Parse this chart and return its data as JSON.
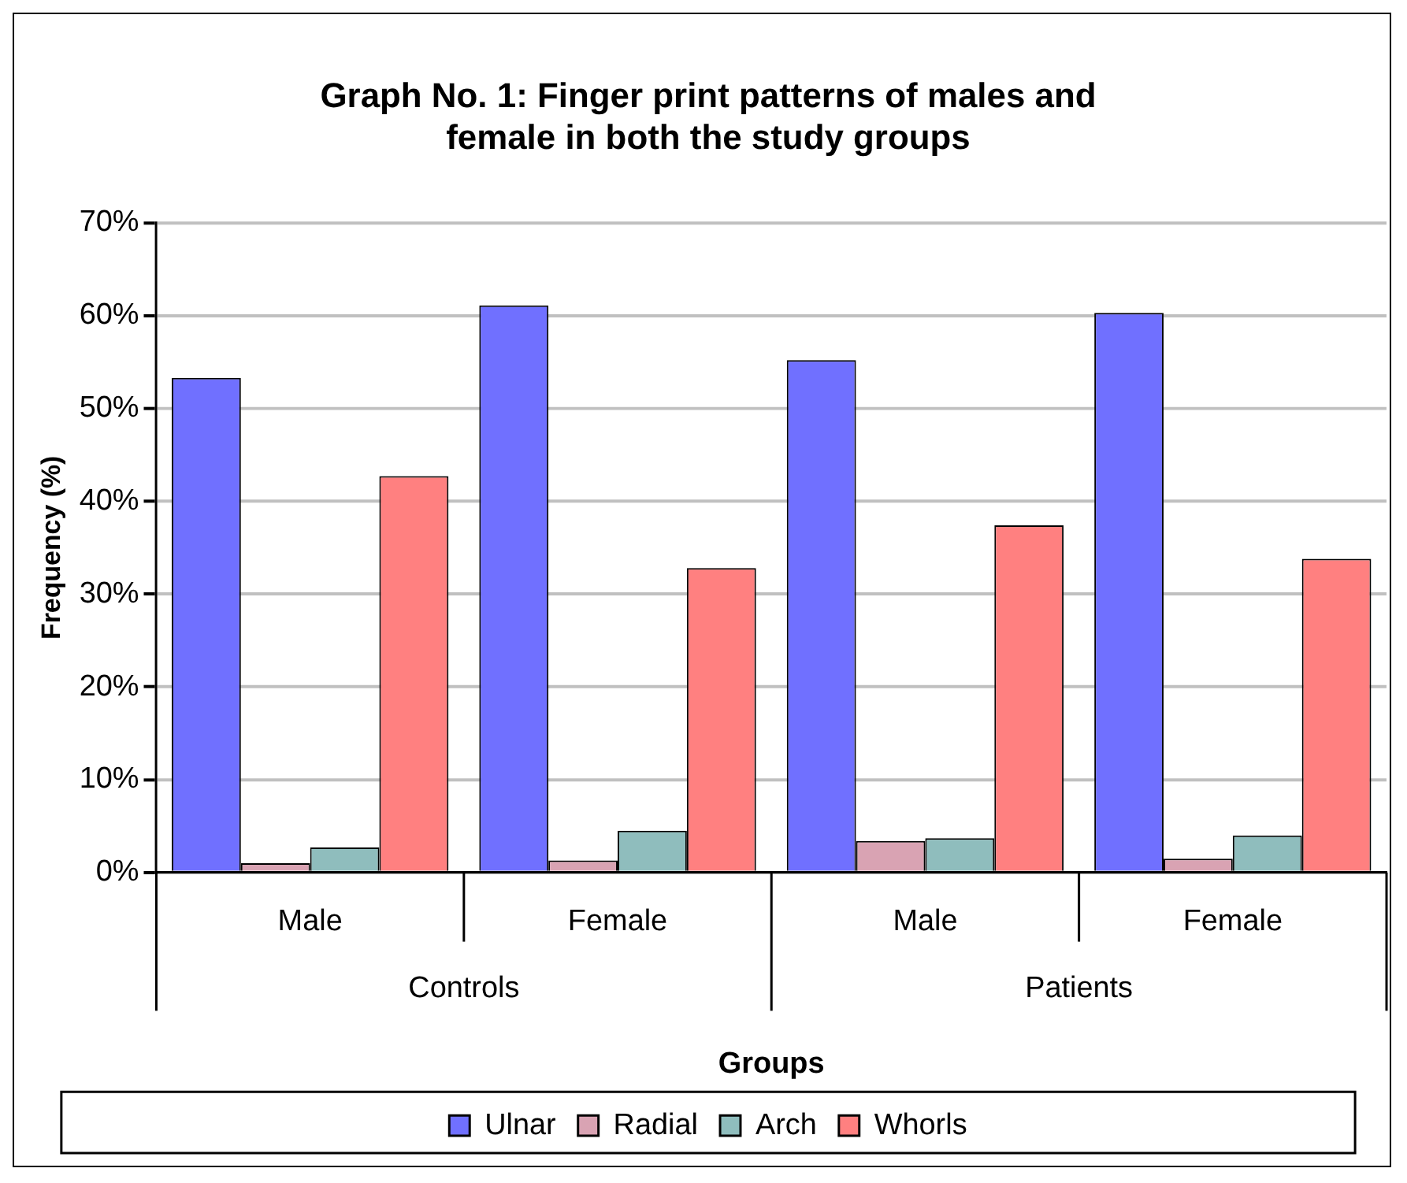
{
  "chart_data": {
    "type": "bar",
    "title": "Graph No. 1: Finger print patterns of males and female in both the study groups",
    "xlabel": "Groups",
    "ylabel": "Frequency (%)",
    "categories": [
      "Male",
      "Female",
      "Male",
      "Female"
    ],
    "annotations": [
      "Controls",
      "Patients"
    ],
    "series": [
      {
        "name": "Ulnar",
        "color": "#7070ff",
        "values": [
          53.3,
          61.1,
          55.2,
          60.3
        ]
      },
      {
        "name": "Radial",
        "color": "#d9a3b3",
        "values": [
          1.0,
          1.3,
          3.4,
          1.5
        ]
      },
      {
        "name": "Arch",
        "color": "#8fbdbd",
        "values": [
          2.7,
          4.5,
          3.7,
          4.0
        ]
      },
      {
        "name": "Whorls",
        "color": "#ff8080",
        "values": [
          42.7,
          32.8,
          37.4,
          33.8
        ]
      }
    ],
    "ylim": [
      0,
      70
    ],
    "yticks": [
      {
        "value": 0,
        "label": "0%"
      },
      {
        "value": 10,
        "label": "10%"
      },
      {
        "value": 20,
        "label": "20%"
      },
      {
        "value": 30,
        "label": "30%"
      },
      {
        "value": 40,
        "label": "40%"
      },
      {
        "value": 50,
        "label": "50%"
      },
      {
        "value": 60,
        "label": "60%"
      },
      {
        "value": 70,
        "label": "70%"
      }
    ],
    "grid": "y",
    "legend": "bottom"
  }
}
